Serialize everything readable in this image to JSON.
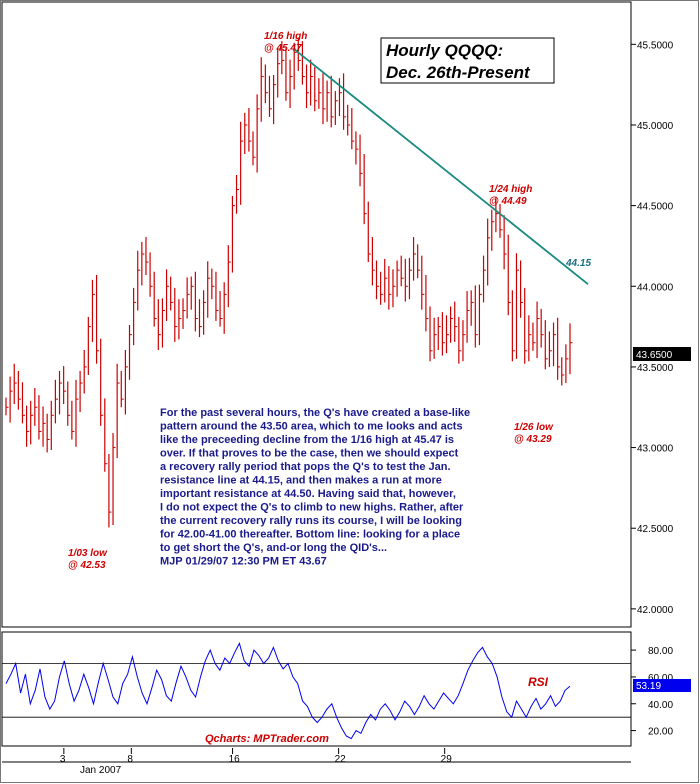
{
  "chart_data": [
    {
      "type": "line",
      "subtype": "hourly-bars",
      "title_lines": [
        "Hourly QQQQ:",
        "Dec. 26th-Present"
      ],
      "ylim": [
        41.9,
        45.75
      ],
      "y_ticks": [
        "45.5000",
        "45.0000",
        "44.5000",
        "44.0000",
        "43.5000",
        "43.0000",
        "42.5000",
        "42.0000"
      ],
      "y_tick_values": [
        45.5,
        45.0,
        44.5,
        44.0,
        43.5,
        43.0,
        42.5,
        42.0
      ],
      "last_price_label": "43.6500",
      "last_price": 43.65,
      "grid": false,
      "series": [
        {
          "values": [
            43.25,
            43.35,
            43.4,
            43.3,
            43.2,
            43.1,
            43.2,
            43.25,
            43.1,
            43.15,
            43.05,
            43.2,
            43.3,
            43.4,
            43.35,
            43.2,
            43.1,
            43.3,
            43.4,
            43.5,
            43.75,
            43.95,
            43.6,
            43.2,
            42.9,
            42.6,
            43.0,
            43.4,
            43.3,
            43.5,
            43.7,
            43.9,
            44.1,
            44.2,
            44.15,
            44.0,
            43.8,
            43.7,
            43.85,
            44.0,
            43.9,
            43.75,
            43.8,
            43.85,
            43.95,
            44.0,
            43.8,
            43.75,
            43.9,
            44.05,
            44.0,
            43.85,
            43.8,
            43.95,
            44.15,
            44.5,
            44.6,
            44.9,
            45.0,
            44.9,
            44.8,
            45.1,
            45.3,
            45.2,
            45.1,
            45.25,
            45.38,
            45.4,
            45.2,
            45.3,
            45.45,
            45.4,
            45.3,
            45.2,
            45.3,
            45.15,
            45.2,
            45.1,
            45.2,
            45.05,
            45.15,
            45.2,
            45.05,
            45.0,
            44.9,
            44.85,
            44.7,
            44.45,
            44.2,
            44.1,
            44.0,
            43.95,
            44.05,
            43.95,
            44.0,
            44.1,
            44.05,
            44.0,
            44.1,
            44.2,
            44.1,
            43.95,
            43.8,
            43.6,
            43.7,
            43.75,
            43.65,
            43.7,
            43.8,
            43.75,
            43.6,
            43.7,
            43.85,
            43.9,
            43.7,
            43.95,
            44.1,
            44.3,
            44.4,
            44.45,
            44.35,
            44.2,
            43.9,
            43.6,
            44.1,
            43.9,
            43.6,
            43.7,
            43.65,
            43.8,
            43.7,
            43.55,
            43.6,
            43.7,
            43.5,
            43.45,
            43.55,
            43.65
          ]
        }
      ],
      "x_ticks": [
        "3",
        "8",
        "16",
        "22",
        "29"
      ],
      "x_month_label": "Jan 2007",
      "trendline": {
        "label": "44.15"
      },
      "annotations": [
        {
          "lines": [
            "1/16 high",
            "@ 45.47"
          ]
        },
        {
          "lines": [
            "1/24 high",
            "@ 44.49"
          ]
        },
        {
          "lines": [
            "1/03 low",
            "@ 42.53"
          ]
        },
        {
          "lines": [
            "1/26 low",
            "@ 43.29"
          ]
        }
      ],
      "commentary": [
        "For the past several hours, the Q's have created a base-like",
        "pattern around the 43.50 area, which to me looks and acts",
        "like the preceeding decline from the 1/16 high at 45.47 is",
        "over. If that proves to be the case, then we should expect",
        "a recovery rally period that pops the Q's to test the Jan.",
        "resistance line at 44.15, and then makes a run at more",
        "important resistance at 44.50. Having said that, however,",
        "I do not expect the Q's to climb to new highs. Rather, after",
        "the current recovery rally runs its course, I will be looking",
        "for 42.00-41.00 thereafter. Bottom line: looking for a place",
        "to get short the Q's, and-or long the QID's...",
        "MJP  01/29/07 12:30 PM ET  43.67"
      ]
    },
    {
      "type": "line",
      "series_label": "RSI",
      "ylim": [
        10,
        92
      ],
      "y_ticks": [
        "80.00",
        "60.00",
        "40.00",
        "20.00"
      ],
      "y_tick_values": [
        80,
        60,
        40,
        20
      ],
      "reference_lines": [
        70,
        30
      ],
      "last_value_label": "53.19",
      "last_value": 53.19,
      "series": [
        {
          "values": [
            55,
            62,
            70,
            48,
            62,
            40,
            50,
            66,
            45,
            36,
            42,
            60,
            72,
            55,
            42,
            50,
            62,
            52,
            40,
            56,
            70,
            58,
            45,
            40,
            55,
            62,
            75,
            60,
            48,
            40,
            52,
            65,
            58,
            46,
            42,
            56,
            68,
            60,
            50,
            45,
            60,
            72,
            80,
            70,
            65,
            74,
            70,
            78,
            85,
            72,
            68,
            80,
            76,
            70,
            74,
            82,
            72,
            66,
            70,
            60,
            55,
            42,
            38,
            30,
            26,
            30,
            36,
            40,
            30,
            22,
            16,
            14,
            20,
            18,
            26,
            32,
            28,
            36,
            40,
            35,
            28,
            34,
            42,
            38,
            32,
            38,
            46,
            40,
            36,
            42,
            48,
            44,
            40,
            46,
            55,
            65,
            72,
            78,
            82,
            75,
            70,
            60,
            45,
            34,
            30,
            42,
            36,
            30,
            38,
            44,
            36,
            40,
            46,
            38,
            42,
            50,
            53
          ]
        }
      ],
      "credit": "Qcharts: MPTrader.com"
    }
  ],
  "colors": {
    "bars": "#cc0000",
    "trendline": "#1a8a80",
    "trendline_label": "#1a6e80",
    "annotation": "#cc0000",
    "commentary": "#1a1a8c",
    "rsi_line": "#0000ee",
    "rsi_label": "#cc0000",
    "price_box": "#000000",
    "rsi_box": "#0000ee"
  }
}
